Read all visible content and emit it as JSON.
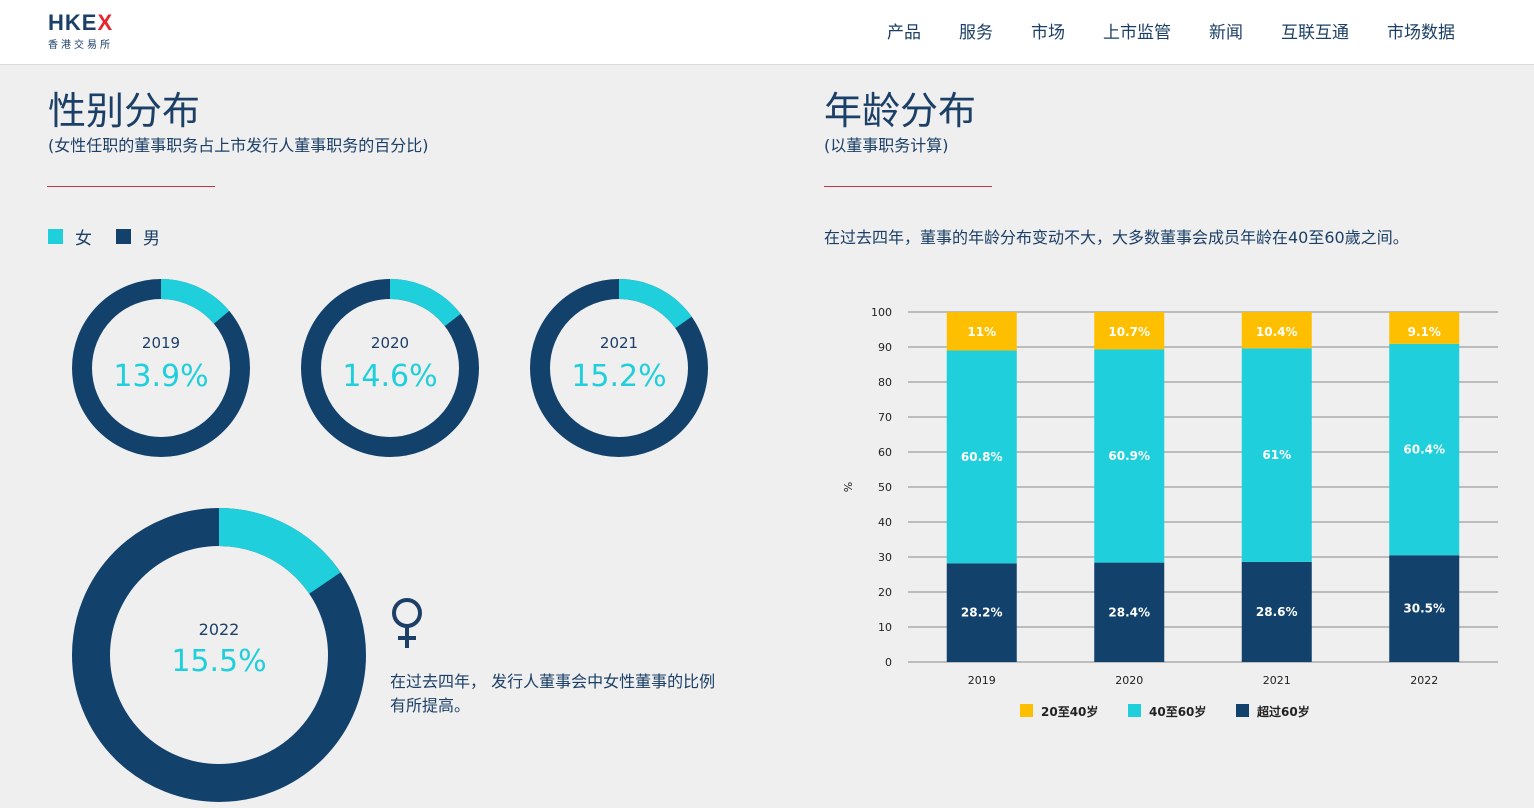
{
  "header": {
    "logo_main": "HKEX",
    "logo_sub": "香港交易所",
    "nav": [
      "产品",
      "服务",
      "市场",
      "上市监管",
      "新闻",
      "互联互通",
      "市场数据"
    ]
  },
  "gender": {
    "title": "性别分布",
    "subtitle": "(女性任职的董事职务占上市发行人董事职务的百分比)",
    "legend_female": "女",
    "legend_male": "男",
    "note": "在过去四年， 发行人董事会中女性董事的比例有所提高。",
    "colors": {
      "female": "#1fcfdb",
      "male": "#12416b"
    },
    "donuts": [
      {
        "year": "2019",
        "value": 13.9,
        "label": "13.9%"
      },
      {
        "year": "2020",
        "value": 14.6,
        "label": "14.6%"
      },
      {
        "year": "2021",
        "value": 15.2,
        "label": "15.2%"
      },
      {
        "year": "2022",
        "value": 15.5,
        "label": "15.5%"
      }
    ]
  },
  "age": {
    "title": "年龄分布",
    "subtitle": "(以董事职务计算)",
    "description": "在过去四年，董事的年龄分布变动不大，大多数董事会成员年龄在40至60歲之间。"
  },
  "chart_data": {
    "type": "bar",
    "stacked": true,
    "categories": [
      "2019",
      "2020",
      "2021",
      "2022"
    ],
    "series": [
      {
        "name": "超过60岁",
        "values": [
          28.2,
          28.4,
          28.6,
          30.5
        ],
        "labels": [
          "28.2%",
          "28.4%",
          "28.6%",
          "30.5%"
        ],
        "color": "#12416b"
      },
      {
        "name": "40至60岁",
        "values": [
          60.8,
          60.9,
          61,
          60.4
        ],
        "labels": [
          "60.8%",
          "60.9%",
          "61%",
          "60.4%"
        ],
        "color": "#1fcfdb"
      },
      {
        "name": "20至40岁",
        "values": [
          11,
          10.7,
          10.4,
          9.1
        ],
        "labels": [
          "11%",
          "10.7%",
          "10.4%",
          "9.1%"
        ],
        "color": "#fdbf00"
      }
    ],
    "legend_order": [
      "20至40岁",
      "40至60岁",
      "超过60岁"
    ],
    "ylabel": "%",
    "ylim": [
      0,
      100
    ],
    "yticks": [
      0,
      10,
      20,
      30,
      40,
      50,
      60,
      70,
      80,
      90,
      100
    ],
    "grid": true,
    "legend_position": "bottom"
  }
}
